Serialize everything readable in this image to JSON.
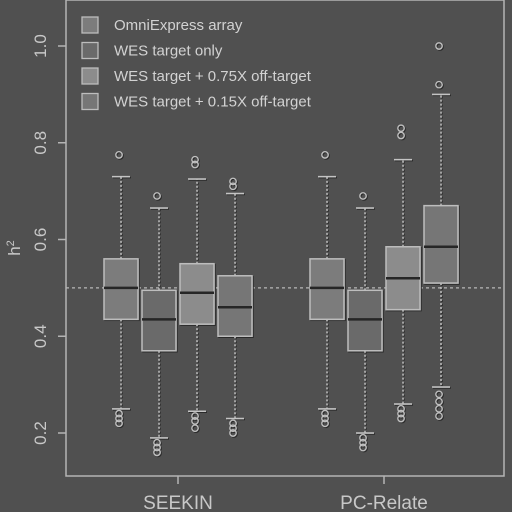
{
  "chart_data": {
    "type": "boxplot",
    "title": "",
    "xlabel": "",
    "ylabel": "h",
    "ylabel_superscript": "2",
    "ylim": [
      0.15,
      1.1
    ],
    "yticks": [
      "0.2",
      "0.4",
      "0.6",
      "0.8",
      "1.0"
    ],
    "reference_line": 0.5,
    "groups": [
      "SEEKIN",
      "PC-Relate"
    ],
    "series": [
      {
        "name": "OmniExpress array",
        "color": "#7c7c7c"
      },
      {
        "name": "WES target only",
        "color": "#6a6a6a"
      },
      {
        "name": "WES target + 0.75X off-target",
        "color": "#8c8c8c"
      },
      {
        "name": "WES target + 0.15X off-target",
        "color": "#767676"
      }
    ],
    "boxes": [
      {
        "group": "SEEKIN",
        "series": 0,
        "whisker_low": 0.25,
        "q1": 0.435,
        "median": 0.5,
        "q3": 0.56,
        "whisker_high": 0.73,
        "outliers": [
          0.775,
          0.24,
          0.23,
          0.22
        ]
      },
      {
        "group": "SEEKIN",
        "series": 1,
        "whisker_low": 0.19,
        "q1": 0.37,
        "median": 0.435,
        "q3": 0.495,
        "whisker_high": 0.665,
        "outliers": [
          0.69,
          0.18,
          0.17,
          0.16
        ]
      },
      {
        "group": "SEEKIN",
        "series": 2,
        "whisker_low": 0.245,
        "q1": 0.425,
        "median": 0.49,
        "q3": 0.55,
        "whisker_high": 0.725,
        "outliers": [
          0.765,
          0.755,
          0.235,
          0.225,
          0.21
        ]
      },
      {
        "group": "SEEKIN",
        "series": 3,
        "whisker_low": 0.23,
        "q1": 0.4,
        "median": 0.46,
        "q3": 0.525,
        "whisker_high": 0.695,
        "outliers": [
          0.72,
          0.71,
          0.22,
          0.21,
          0.2
        ]
      },
      {
        "group": "PC-Relate",
        "series": 0,
        "whisker_low": 0.25,
        "q1": 0.435,
        "median": 0.5,
        "q3": 0.56,
        "whisker_high": 0.73,
        "outliers": [
          0.775,
          0.24,
          0.23,
          0.22
        ]
      },
      {
        "group": "PC-Relate",
        "series": 1,
        "whisker_low": 0.2,
        "q1": 0.37,
        "median": 0.435,
        "q3": 0.495,
        "whisker_high": 0.665,
        "outliers": [
          0.69,
          0.19,
          0.18,
          0.17
        ]
      },
      {
        "group": "PC-Relate",
        "series": 2,
        "whisker_low": 0.26,
        "q1": 0.455,
        "median": 0.52,
        "q3": 0.585,
        "whisker_high": 0.765,
        "outliers": [
          0.83,
          0.815,
          0.25,
          0.24,
          0.23
        ]
      },
      {
        "group": "PC-Relate",
        "series": 3,
        "whisker_low": 0.295,
        "q1": 0.51,
        "median": 0.585,
        "q3": 0.67,
        "whisker_high": 0.9,
        "outliers": [
          1.0,
          0.92,
          0.28,
          0.265,
          0.25,
          0.235
        ]
      }
    ]
  }
}
